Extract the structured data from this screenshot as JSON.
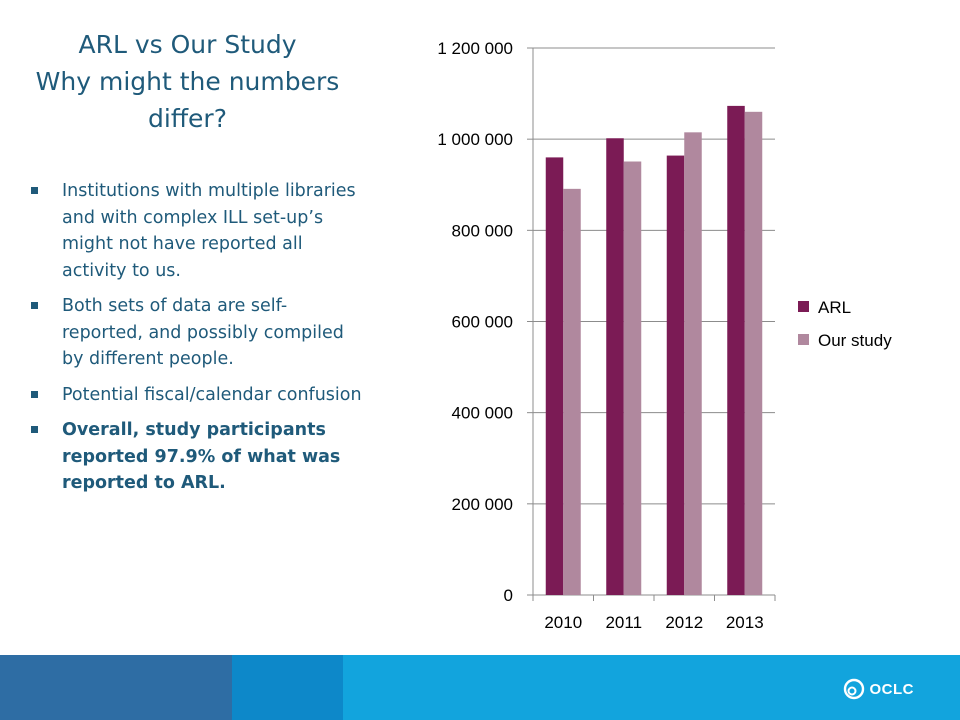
{
  "slide": {
    "title_lines": [
      "ARL vs Our Study",
      "Why might the numbers",
      "differ?"
    ],
    "bullets": [
      {
        "text": " Institutions with multiple libraries and with complex ILL set-up’s might not have reported all activity to us.",
        "bold": false
      },
      {
        "text": "Both sets of data are self-reported, and possibly compiled by different people.",
        "bold": false
      },
      {
        "text": " Potential fiscal/calendar confusion",
        "bold": false
      },
      {
        "text": "Overall, study participants reported 97.9% of what was reported to ARL.",
        "bold": true
      }
    ]
  },
  "chart_data": {
    "type": "bar",
    "categories": [
      "2010",
      "2011",
      "2012",
      "2013"
    ],
    "series": [
      {
        "name": "ARL",
        "color": "#7b1b55",
        "values": [
          960000,
          1002000,
          964000,
          1073000
        ]
      },
      {
        "name": "Our study",
        "color": "#b0889e",
        "values": [
          891000,
          951000,
          1015000,
          1060000
        ]
      }
    ],
    "ylim": [
      0,
      1200000
    ],
    "yticks": [
      0,
      200000,
      400000,
      600000,
      800000,
      1000000,
      1200000
    ],
    "ytick_labels": [
      "0",
      "200 000",
      "400 000",
      "600 000",
      "800 000",
      "1 000 000",
      "1 200 000"
    ],
    "grid": true,
    "legend_position": "right",
    "title": "",
    "xlabel": "",
    "ylabel": ""
  },
  "footer": {
    "logo_text": "OCLC",
    "colors": [
      "#2e6da4",
      "#0d88c9",
      "#12a4dd"
    ]
  }
}
